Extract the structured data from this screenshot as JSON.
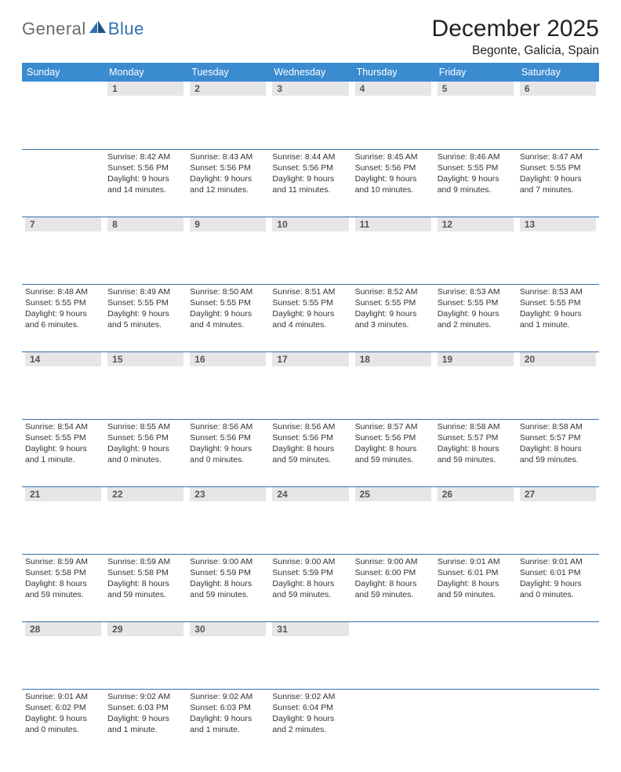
{
  "brand": {
    "part1": "General",
    "part2": "Blue"
  },
  "title": "December 2025",
  "location": "Begonte, Galicia, Spain",
  "colors": {
    "header_bg": "#3a8bd0",
    "header_text": "#ffffff",
    "daynum_bg": "#e6e6e6",
    "daynum_text": "#555555",
    "row_border": "#3a6fa8",
    "body_text": "#333333",
    "logo_gray": "#6b6b6b",
    "logo_blue": "#2f6fb0"
  },
  "weekdays": [
    "Sunday",
    "Monday",
    "Tuesday",
    "Wednesday",
    "Thursday",
    "Friday",
    "Saturday"
  ],
  "weeks": [
    [
      {
        "day": "",
        "sunrise": "",
        "sunset": "",
        "daylight": ""
      },
      {
        "day": "1",
        "sunrise": "Sunrise: 8:42 AM",
        "sunset": "Sunset: 5:56 PM",
        "daylight": "Daylight: 9 hours and 14 minutes."
      },
      {
        "day": "2",
        "sunrise": "Sunrise: 8:43 AM",
        "sunset": "Sunset: 5:56 PM",
        "daylight": "Daylight: 9 hours and 12 minutes."
      },
      {
        "day": "3",
        "sunrise": "Sunrise: 8:44 AM",
        "sunset": "Sunset: 5:56 PM",
        "daylight": "Daylight: 9 hours and 11 minutes."
      },
      {
        "day": "4",
        "sunrise": "Sunrise: 8:45 AM",
        "sunset": "Sunset: 5:56 PM",
        "daylight": "Daylight: 9 hours and 10 minutes."
      },
      {
        "day": "5",
        "sunrise": "Sunrise: 8:46 AM",
        "sunset": "Sunset: 5:55 PM",
        "daylight": "Daylight: 9 hours and 9 minutes."
      },
      {
        "day": "6",
        "sunrise": "Sunrise: 8:47 AM",
        "sunset": "Sunset: 5:55 PM",
        "daylight": "Daylight: 9 hours and 7 minutes."
      }
    ],
    [
      {
        "day": "7",
        "sunrise": "Sunrise: 8:48 AM",
        "sunset": "Sunset: 5:55 PM",
        "daylight": "Daylight: 9 hours and 6 minutes."
      },
      {
        "day": "8",
        "sunrise": "Sunrise: 8:49 AM",
        "sunset": "Sunset: 5:55 PM",
        "daylight": "Daylight: 9 hours and 5 minutes."
      },
      {
        "day": "9",
        "sunrise": "Sunrise: 8:50 AM",
        "sunset": "Sunset: 5:55 PM",
        "daylight": "Daylight: 9 hours and 4 minutes."
      },
      {
        "day": "10",
        "sunrise": "Sunrise: 8:51 AM",
        "sunset": "Sunset: 5:55 PM",
        "daylight": "Daylight: 9 hours and 4 minutes."
      },
      {
        "day": "11",
        "sunrise": "Sunrise: 8:52 AM",
        "sunset": "Sunset: 5:55 PM",
        "daylight": "Daylight: 9 hours and 3 minutes."
      },
      {
        "day": "12",
        "sunrise": "Sunrise: 8:53 AM",
        "sunset": "Sunset: 5:55 PM",
        "daylight": "Daylight: 9 hours and 2 minutes."
      },
      {
        "day": "13",
        "sunrise": "Sunrise: 8:53 AM",
        "sunset": "Sunset: 5:55 PM",
        "daylight": "Daylight: 9 hours and 1 minute."
      }
    ],
    [
      {
        "day": "14",
        "sunrise": "Sunrise: 8:54 AM",
        "sunset": "Sunset: 5:55 PM",
        "daylight": "Daylight: 9 hours and 1 minute."
      },
      {
        "day": "15",
        "sunrise": "Sunrise: 8:55 AM",
        "sunset": "Sunset: 5:56 PM",
        "daylight": "Daylight: 9 hours and 0 minutes."
      },
      {
        "day": "16",
        "sunrise": "Sunrise: 8:56 AM",
        "sunset": "Sunset: 5:56 PM",
        "daylight": "Daylight: 9 hours and 0 minutes."
      },
      {
        "day": "17",
        "sunrise": "Sunrise: 8:56 AM",
        "sunset": "Sunset: 5:56 PM",
        "daylight": "Daylight: 8 hours and 59 minutes."
      },
      {
        "day": "18",
        "sunrise": "Sunrise: 8:57 AM",
        "sunset": "Sunset: 5:56 PM",
        "daylight": "Daylight: 8 hours and 59 minutes."
      },
      {
        "day": "19",
        "sunrise": "Sunrise: 8:58 AM",
        "sunset": "Sunset: 5:57 PM",
        "daylight": "Daylight: 8 hours and 59 minutes."
      },
      {
        "day": "20",
        "sunrise": "Sunrise: 8:58 AM",
        "sunset": "Sunset: 5:57 PM",
        "daylight": "Daylight: 8 hours and 59 minutes."
      }
    ],
    [
      {
        "day": "21",
        "sunrise": "Sunrise: 8:59 AM",
        "sunset": "Sunset: 5:58 PM",
        "daylight": "Daylight: 8 hours and 59 minutes."
      },
      {
        "day": "22",
        "sunrise": "Sunrise: 8:59 AM",
        "sunset": "Sunset: 5:58 PM",
        "daylight": "Daylight: 8 hours and 59 minutes."
      },
      {
        "day": "23",
        "sunrise": "Sunrise: 9:00 AM",
        "sunset": "Sunset: 5:59 PM",
        "daylight": "Daylight: 8 hours and 59 minutes."
      },
      {
        "day": "24",
        "sunrise": "Sunrise: 9:00 AM",
        "sunset": "Sunset: 5:59 PM",
        "daylight": "Daylight: 8 hours and 59 minutes."
      },
      {
        "day": "25",
        "sunrise": "Sunrise: 9:00 AM",
        "sunset": "Sunset: 6:00 PM",
        "daylight": "Daylight: 8 hours and 59 minutes."
      },
      {
        "day": "26",
        "sunrise": "Sunrise: 9:01 AM",
        "sunset": "Sunset: 6:01 PM",
        "daylight": "Daylight: 8 hours and 59 minutes."
      },
      {
        "day": "27",
        "sunrise": "Sunrise: 9:01 AM",
        "sunset": "Sunset: 6:01 PM",
        "daylight": "Daylight: 9 hours and 0 minutes."
      }
    ],
    [
      {
        "day": "28",
        "sunrise": "Sunrise: 9:01 AM",
        "sunset": "Sunset: 6:02 PM",
        "daylight": "Daylight: 9 hours and 0 minutes."
      },
      {
        "day": "29",
        "sunrise": "Sunrise: 9:02 AM",
        "sunset": "Sunset: 6:03 PM",
        "daylight": "Daylight: 9 hours and 1 minute."
      },
      {
        "day": "30",
        "sunrise": "Sunrise: 9:02 AM",
        "sunset": "Sunset: 6:03 PM",
        "daylight": "Daylight: 9 hours and 1 minute."
      },
      {
        "day": "31",
        "sunrise": "Sunrise: 9:02 AM",
        "sunset": "Sunset: 6:04 PM",
        "daylight": "Daylight: 9 hours and 2 minutes."
      },
      {
        "day": "",
        "sunrise": "",
        "sunset": "",
        "daylight": ""
      },
      {
        "day": "",
        "sunrise": "",
        "sunset": "",
        "daylight": ""
      },
      {
        "day": "",
        "sunrise": "",
        "sunset": "",
        "daylight": ""
      }
    ]
  ]
}
